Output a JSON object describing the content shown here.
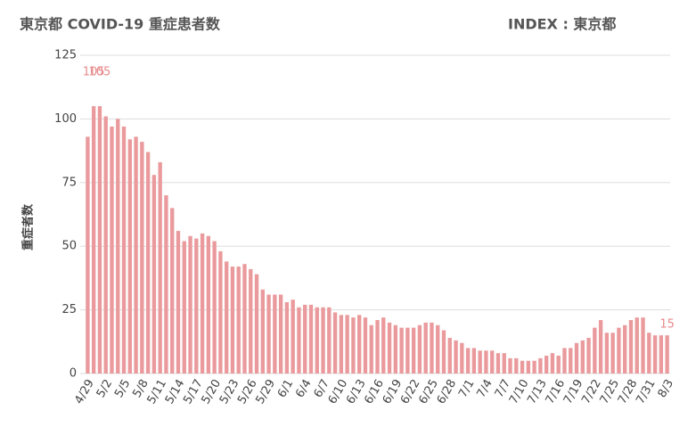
{
  "chart_data": {
    "type": "bar",
    "title": "東京都 COVID-19 重症患者数",
    "subtitle": "INDEX : 東京都",
    "y_label": "重症者数",
    "color": "#ea9a9c",
    "grid": true,
    "ylim": [
      0,
      125
    ],
    "yticks": [
      0,
      25,
      50,
      75,
      100,
      125
    ],
    "categories": [
      "4/29",
      null,
      null,
      "5/2",
      null,
      null,
      "5/5",
      null,
      null,
      "5/8",
      null,
      null,
      "5/11",
      null,
      null,
      "5/14",
      null,
      null,
      "5/17",
      null,
      null,
      "5/20",
      null,
      null,
      "5/23",
      null,
      null,
      "5/26",
      null,
      null,
      "5/29",
      null,
      null,
      "6/1",
      null,
      null,
      "6/4",
      null,
      null,
      "6/7",
      null,
      null,
      "6/10",
      null,
      null,
      "6/13",
      null,
      null,
      "6/16",
      null,
      null,
      "6/19",
      null,
      null,
      "6/22",
      null,
      null,
      "6/25",
      null,
      null,
      "6/28",
      null,
      null,
      "7/1",
      null,
      null,
      "7/4",
      null,
      null,
      "7/7",
      null,
      null,
      "7/10",
      null,
      null,
      "7/13",
      null,
      null,
      "7/16",
      null,
      null,
      "7/19",
      null,
      null,
      "7/22",
      null,
      null,
      "7/25",
      null,
      null,
      "7/28",
      null,
      null,
      "7/31",
      null,
      null,
      "8/3"
    ],
    "values": [
      93,
      105,
      105,
      101,
      97,
      100,
      97,
      92,
      93,
      91,
      87,
      78,
      83,
      70,
      65,
      56,
      52,
      54,
      53,
      55,
      54,
      52,
      48,
      44,
      42,
      42,
      43,
      41,
      39,
      33,
      31,
      31,
      31,
      28,
      29,
      26,
      27,
      27,
      26,
      26,
      26,
      24,
      23,
      23,
      22,
      23,
      22,
      19,
      21,
      22,
      20,
      19,
      18,
      18,
      18,
      19,
      20,
      20,
      19,
      17,
      14,
      13,
      12,
      10,
      10,
      9,
      9,
      9,
      8,
      8,
      6,
      6,
      5,
      5,
      5,
      6,
      7,
      8,
      7,
      10,
      10,
      12,
      13,
      14,
      18,
      21,
      16,
      16,
      18,
      19,
      21,
      22,
      22,
      16,
      15,
      15,
      15
    ],
    "value_labels": [
      null,
      "105",
      "105",
      null,
      null,
      null,
      null,
      null,
      null,
      null,
      null,
      null,
      null,
      null,
      null,
      null,
      null,
      null,
      null,
      null,
      null,
      null,
      null,
      null,
      null,
      null,
      null,
      null,
      null,
      null,
      null,
      null,
      null,
      null,
      null,
      null,
      null,
      null,
      null,
      null,
      null,
      null,
      null,
      null,
      null,
      null,
      null,
      null,
      null,
      null,
      null,
      null,
      null,
      null,
      null,
      null,
      null,
      null,
      null,
      null,
      null,
      null,
      null,
      null,
      null,
      null,
      null,
      null,
      null,
      null,
      null,
      null,
      null,
      null,
      null,
      null,
      null,
      null,
      null,
      null,
      null,
      null,
      null,
      null,
      null,
      null,
      null,
      null,
      null,
      null,
      null,
      null,
      null,
      null,
      null,
      null,
      "15"
    ]
  }
}
